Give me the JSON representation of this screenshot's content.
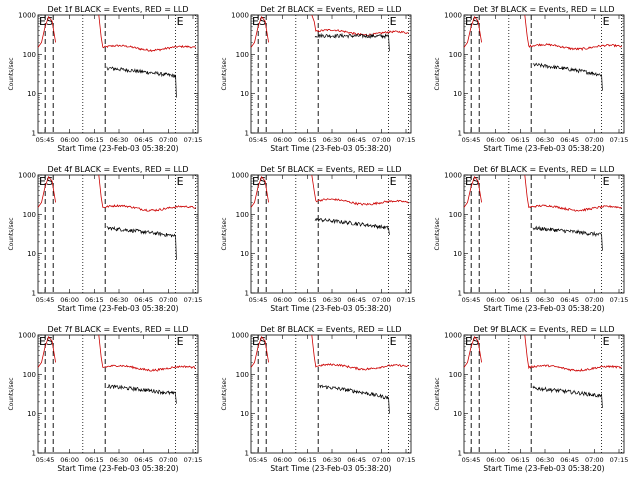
{
  "chart_data": [
    {
      "type": "line",
      "title": "Det 1f BLACK = Events, RED = LLD",
      "xlabel": "Start Time (23-Feb-03 05:38:20)",
      "ylabel": "Counts/sec",
      "yscale": "log",
      "ylim": [
        1,
        1000
      ],
      "x_ticks": [
        "05:45",
        "06:00",
        "06:15",
        "06:30",
        "06:45",
        "07:00",
        "07:15"
      ],
      "y_ticks": [
        "1",
        "10",
        "100",
        "1000"
      ],
      "markers": [
        {
          "label": "E",
          "pos": 0.0
        },
        {
          "label": "S",
          "pos": 0.045
        },
        {
          "label": "E",
          "pos": 0.86
        }
      ],
      "dashed": [
        0.045,
        0.095,
        0.42
      ],
      "dotted": [
        0.28,
        0.86,
        0.985
      ],
      "series": [
        {
          "color": "#cc0000",
          "gap": [
            0.11,
            0.38
          ],
          "pre": [
            150,
            200,
            500,
            900,
            700,
            200
          ],
          "peak": 1000,
          "level": 150,
          "end": 140
        },
        {
          "color": "#000000",
          "start": 0.43,
          "level": 45,
          "end": 28,
          "drop": 8
        }
      ]
    },
    {
      "type": "line",
      "title": "Det 2f BLACK = Events, RED = LLD",
      "xlabel": "Start Time (23-Feb-03 05:38:20)",
      "ylabel": "Counts/sec",
      "yscale": "log",
      "ylim": [
        1,
        1000
      ],
      "x_ticks": [
        "05:45",
        "06:00",
        "06:15",
        "06:30",
        "06:45",
        "07:00",
        "07:15"
      ],
      "y_ticks": [
        "1",
        "10",
        "100",
        "1000"
      ],
      "markers": [
        {
          "label": "E",
          "pos": 0.0
        },
        {
          "label": "S",
          "pos": 0.045
        },
        {
          "label": "E",
          "pos": 0.86
        }
      ],
      "dashed": [
        0.045,
        0.095,
        0.42
      ],
      "dotted": [
        0.28,
        0.86,
        0.985
      ],
      "series": [
        {
          "color": "#cc0000",
          "gap": [
            0.11,
            0.38
          ],
          "pre": [
            150,
            200,
            500,
            900,
            700,
            200
          ],
          "peak": 1000,
          "level": 380,
          "end": 330
        },
        {
          "color": "#000000",
          "start": 0.4,
          "level": 300,
          "end": 290,
          "drop": 120
        }
      ]
    },
    {
      "type": "line",
      "title": "Det 3f BLACK = Events, RED = LLD",
      "xlabel": "Start Time (23-Feb-03 05:38:20)",
      "ylabel": "Counts/sec",
      "yscale": "log",
      "ylim": [
        1,
        1000
      ],
      "x_ticks": [
        "05:45",
        "06:00",
        "06:15",
        "06:30",
        "06:45",
        "07:00",
        "07:15"
      ],
      "y_ticks": [
        "1",
        "10",
        "100",
        "1000"
      ],
      "markers": [
        {
          "label": "E",
          "pos": 0.0
        },
        {
          "label": "S",
          "pos": 0.045
        },
        {
          "label": "E",
          "pos": 0.86
        }
      ],
      "dashed": [
        0.045,
        0.095,
        0.42
      ],
      "dotted": [
        0.28,
        0.86,
        0.985
      ],
      "series": [
        {
          "color": "#cc0000",
          "gap": [
            0.11,
            0.38
          ],
          "pre": [
            150,
            200,
            500,
            900,
            700,
            200
          ],
          "peak": 1000,
          "level": 160,
          "end": 150
        },
        {
          "color": "#000000",
          "start": 0.43,
          "level": 55,
          "end": 30,
          "drop": 12
        }
      ]
    },
    {
      "type": "line",
      "title": "Det 4f BLACK = Events, RED = LLD",
      "xlabel": "Start Time (23-Feb-03 05:38:20)",
      "ylabel": "Counts/sec",
      "yscale": "log",
      "ylim": [
        1,
        1000
      ],
      "x_ticks": [
        "05:45",
        "06:00",
        "06:15",
        "06:30",
        "06:45",
        "07:00",
        "07:15"
      ],
      "y_ticks": [
        "1",
        "10",
        "100",
        "1000"
      ],
      "markers": [
        {
          "label": "E",
          "pos": 0.0
        },
        {
          "label": "S",
          "pos": 0.045
        },
        {
          "label": "E",
          "pos": 0.86
        }
      ],
      "dashed": [
        0.045,
        0.095,
        0.42
      ],
      "dotted": [
        0.28,
        0.86,
        0.985
      ],
      "series": [
        {
          "color": "#cc0000",
          "gap": [
            0.11,
            0.38
          ],
          "pre": [
            150,
            200,
            500,
            900,
            700,
            200
          ],
          "peak": 1000,
          "level": 150,
          "end": 140
        },
        {
          "color": "#000000",
          "start": 0.43,
          "level": 45,
          "end": 28,
          "drop": 7
        }
      ]
    },
    {
      "type": "line",
      "title": "Det 5f BLACK = Events, RED = LLD",
      "xlabel": "Start Time (23-Feb-03 05:38:20)",
      "ylabel": "Counts/sec",
      "yscale": "log",
      "ylim": [
        1,
        1000
      ],
      "x_ticks": [
        "05:45",
        "06:00",
        "06:15",
        "06:30",
        "06:45",
        "07:00",
        "07:15"
      ],
      "y_ticks": [
        "1",
        "10",
        "100",
        "1000"
      ],
      "markers": [
        {
          "label": "E",
          "pos": 0.0
        },
        {
          "label": "S",
          "pos": 0.045
        },
        {
          "label": "E",
          "pos": 0.86
        }
      ],
      "dashed": [
        0.045,
        0.095,
        0.42
      ],
      "dotted": [
        0.28,
        0.86,
        0.985
      ],
      "series": [
        {
          "color": "#cc0000",
          "gap": [
            0.11,
            0.38
          ],
          "pre": [
            150,
            200,
            500,
            900,
            700,
            200
          ],
          "peak": 1000,
          "level": 220,
          "end": 190
        },
        {
          "color": "#000000",
          "start": 0.4,
          "level": 75,
          "end": 45,
          "drop": 30
        }
      ]
    },
    {
      "type": "line",
      "title": "Det 6f BLACK = Events, RED = LLD",
      "xlabel": "Start Time (23-Feb-03 05:38:20)",
      "ylabel": "Counts/sec",
      "yscale": "log",
      "ylim": [
        1,
        1000
      ],
      "x_ticks": [
        "05:45",
        "06:00",
        "06:15",
        "06:30",
        "06:45",
        "07:00",
        "07:15"
      ],
      "y_ticks": [
        "1",
        "10",
        "100",
        "1000"
      ],
      "markers": [
        {
          "label": "E",
          "pos": 0.0
        },
        {
          "label": "S",
          "pos": 0.045
        },
        {
          "label": "E",
          "pos": 0.86
        }
      ],
      "dashed": [
        0.045,
        0.095,
        0.42
      ],
      "dotted": [
        0.28,
        0.86,
        0.985
      ],
      "series": [
        {
          "color": "#cc0000",
          "gap": [
            0.11,
            0.38
          ],
          "pre": [
            150,
            200,
            500,
            900,
            700,
            200
          ],
          "peak": 1000,
          "level": 150,
          "end": 140
        },
        {
          "color": "#000000",
          "start": 0.43,
          "level": 45,
          "end": 30,
          "drop": 12
        }
      ]
    },
    {
      "type": "line",
      "title": "Det 7f BLACK = Events, RED = LLD",
      "xlabel": "Start Time (23-Feb-03 05:38:20)",
      "ylabel": "Counts/sec",
      "yscale": "log",
      "ylim": [
        1,
        1000
      ],
      "x_ticks": [
        "05:45",
        "06:00",
        "06:15",
        "06:30",
        "06:45",
        "07:00",
        "07:15"
      ],
      "y_ticks": [
        "1",
        "10",
        "100",
        "1000"
      ],
      "markers": [
        {
          "label": "E",
          "pos": 0.0
        },
        {
          "label": "S",
          "pos": 0.045
        },
        {
          "label": "E",
          "pos": 0.86
        }
      ],
      "dashed": [
        0.045,
        0.095,
        0.42
      ],
      "dotted": [
        0.28,
        0.86,
        0.985
      ],
      "series": [
        {
          "color": "#cc0000",
          "gap": [
            0.11,
            0.38
          ],
          "pre": [
            150,
            200,
            500,
            900,
            700,
            200
          ],
          "peak": 1000,
          "level": 150,
          "end": 140
        },
        {
          "color": "#000000",
          "start": 0.43,
          "level": 50,
          "end": 32,
          "drop": 18
        }
      ]
    },
    {
      "type": "line",
      "title": "Det 8f BLACK = Events, RED = LLD",
      "xlabel": "Start Time (23-Feb-03 05:38:20)",
      "ylabel": "Counts/sec",
      "yscale": "log",
      "ylim": [
        1,
        1000
      ],
      "x_ticks": [
        "05:45",
        "06:00",
        "06:15",
        "06:30",
        "06:45",
        "07:00",
        "07:15"
      ],
      "y_ticks": [
        "1",
        "10",
        "100",
        "1000"
      ],
      "markers": [
        {
          "label": "E",
          "pos": 0.0
        },
        {
          "label": "S",
          "pos": 0.045
        },
        {
          "label": "E",
          "pos": 0.86
        }
      ],
      "dashed": [
        0.045,
        0.095,
        0.42
      ],
      "dotted": [
        0.28,
        0.86,
        0.985
      ],
      "series": [
        {
          "color": "#cc0000",
          "gap": [
            0.11,
            0.38
          ],
          "pre": [
            150,
            200,
            500,
            900,
            700,
            200
          ],
          "peak": 1000,
          "level": 160,
          "end": 150
        },
        {
          "color": "#000000",
          "start": 0.43,
          "level": 50,
          "end": 25,
          "drop": 10
        }
      ]
    },
    {
      "type": "line",
      "title": "Det 9f BLACK = Events, RED = LLD",
      "xlabel": "Start Time (23-Feb-03 05:38:20)",
      "ylabel": "Counts/sec",
      "yscale": "log",
      "ylim": [
        1,
        1000
      ],
      "x_ticks": [
        "05:45",
        "06:00",
        "06:15",
        "06:30",
        "06:45",
        "07:00",
        "07:15"
      ],
      "y_ticks": [
        "1",
        "10",
        "100",
        "1000"
      ],
      "markers": [
        {
          "label": "E",
          "pos": 0.0
        },
        {
          "label": "S",
          "pos": 0.045
        },
        {
          "label": "E",
          "pos": 0.86
        }
      ],
      "dashed": [
        0.045,
        0.095,
        0.42
      ],
      "dotted": [
        0.28,
        0.86,
        0.985
      ],
      "series": [
        {
          "color": "#cc0000",
          "gap": [
            0.11,
            0.38
          ],
          "pre": [
            150,
            200,
            500,
            900,
            700,
            200
          ],
          "peak": 1000,
          "level": 150,
          "end": 140
        },
        {
          "color": "#000000",
          "start": 0.43,
          "level": 45,
          "end": 28,
          "drop": 14
        }
      ]
    }
  ]
}
